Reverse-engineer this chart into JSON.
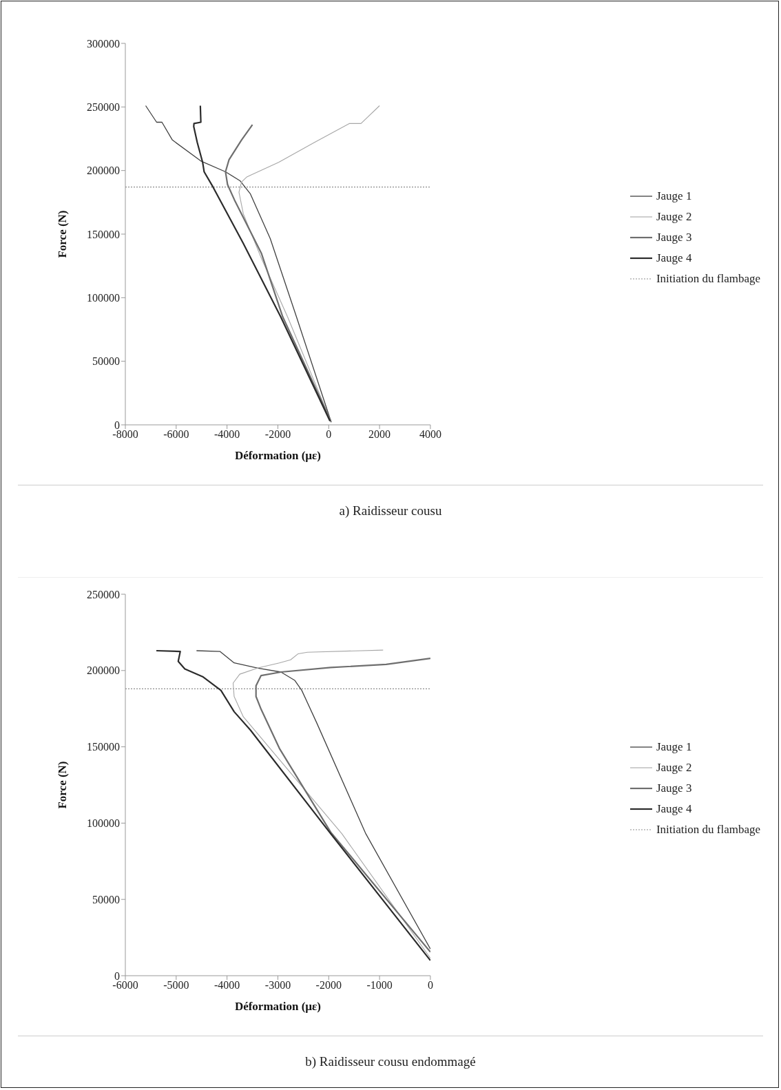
{
  "chart_data": [
    {
      "type": "line",
      "xlabel": "Déformation (µε)",
      "ylabel": "Force (N)",
      "annotations": [
        "a) Raidisseur cousu"
      ],
      "xlim": [
        -8000,
        4000
      ],
      "xticks": [
        -8000,
        -6000,
        -4000,
        -2000,
        0,
        2000,
        4000
      ],
      "ylim": [
        0,
        300000
      ],
      "yticks": [
        0,
        50000,
        100000,
        150000,
        200000,
        250000,
        300000
      ],
      "legend": "right",
      "line_style": "solid",
      "marker": "none",
      "ref_lines": [
        {
          "axis": "y",
          "value": 187000,
          "label": "Initiation du flambage",
          "color": "#8c8c8c",
          "line_style": "dotted"
        }
      ],
      "series": [
        {
          "name": "Jauge 1",
          "color": "#404040",
          "x": [
            -7200,
            -6770,
            -6560,
            -6150,
            -5030,
            -4060,
            -3490,
            -3080,
            -2300,
            -1270,
            100
          ],
          "values": [
            251000,
            238000,
            238000,
            224000,
            207500,
            199000,
            192000,
            181600,
            146500,
            85000,
            2000
          ]
        },
        {
          "name": "Jauge 2",
          "color": "#a6a6a6",
          "x": [
            2000,
            1270,
            820,
            -570,
            -1970,
            -3220,
            -3430,
            -3530,
            -3360,
            -2650,
            -1620,
            60
          ],
          "values": [
            251000,
            237000,
            237000,
            222000,
            206500,
            195000,
            191000,
            183000,
            166000,
            131000,
            85000,
            4000
          ]
        },
        {
          "name": "Jauge 3",
          "color": "#6e6e6e",
          "x": [
            -3000,
            -3430,
            -3920,
            -4060,
            -3980,
            -3710,
            -2650,
            -1810,
            80
          ],
          "values": [
            236000,
            224000,
            208600,
            199000,
            189000,
            177000,
            135000,
            85000,
            3000
          ]
        },
        {
          "name": "Jauge 4",
          "color": "#2b2b2b",
          "x": [
            -5050,
            -5030,
            -5300,
            -5310,
            -5170,
            -4960,
            -4900,
            -4550,
            -3360,
            -1890,
            50
          ],
          "values": [
            251000,
            238000,
            237000,
            234600,
            222000,
            206500,
            199000,
            187000,
            142700,
            85000,
            3000
          ]
        }
      ]
    },
    {
      "type": "line",
      "xlabel": "Déformation (µε)",
      "ylabel": "Force (N)",
      "annotations": [
        "b) Raidisseur cousu endommagé"
      ],
      "xlim": [
        -6000,
        0
      ],
      "xticks": [
        -6000,
        -5000,
        -4000,
        -3000,
        -2000,
        -1000,
        0
      ],
      "ylim": [
        0,
        250000
      ],
      "yticks": [
        0,
        50000,
        100000,
        150000,
        200000,
        250000
      ],
      "legend": "right",
      "line_style": "solid",
      "marker": "none",
      "ref_lines": [
        {
          "axis": "y",
          "value": 188000,
          "label": "Initiation du flambage",
          "color": "#8c8c8c",
          "line_style": "dotted"
        }
      ],
      "series": [
        {
          "name": "Jauge 1",
          "color": "#404040",
          "x": [
            -4600,
            -4140,
            -3860,
            -3390,
            -2940,
            -2670,
            -2530,
            -2240,
            -1270,
            0
          ],
          "values": [
            213000,
            212500,
            205000,
            201500,
            199000,
            193600,
            187000,
            166000,
            93000,
            17500
          ]
        },
        {
          "name": "Jauge 2",
          "color": "#a6a6a6",
          "x": [
            -930,
            -2420,
            -2600,
            -2750,
            -2970,
            -3390,
            -3750,
            -3880,
            -3860,
            -3680,
            -1740,
            0
          ],
          "values": [
            213400,
            212000,
            211000,
            207000,
            205000,
            201700,
            197600,
            191800,
            183000,
            169700,
            93000,
            11500
          ]
        },
        {
          "name": "Jauge 3",
          "color": "#6e6e6e",
          "x": [
            0,
            -870,
            -1960,
            -2940,
            -3330,
            -3430,
            -3430,
            -3330,
            -2970,
            -1960,
            0
          ],
          "values": [
            208000,
            204000,
            202000,
            199000,
            196700,
            190000,
            183000,
            174600,
            149000,
            94000,
            15500
          ]
        },
        {
          "name": "Jauge 4",
          "color": "#2b2b2b",
          "x": [
            -5390,
            -4920,
            -4960,
            -4830,
            -4480,
            -4120,
            -3860,
            -3540,
            -1960,
            0
          ],
          "values": [
            213000,
            212500,
            206000,
            201000,
            196000,
            187000,
            173000,
            161000,
            93000,
            10000
          ]
        }
      ]
    }
  ]
}
